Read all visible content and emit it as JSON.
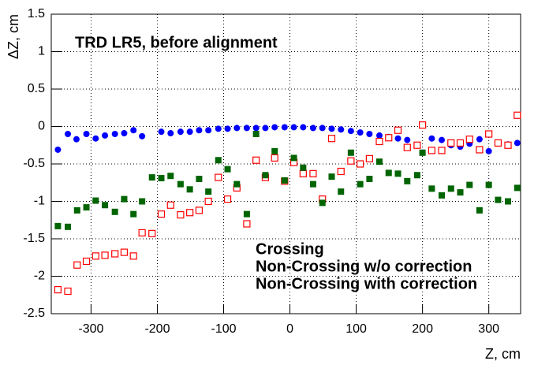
{
  "chart_data": {
    "type": "scatter",
    "title": "TRD LR5, before alignment",
    "x_label": "Z, cm",
    "y_label": "ΔZ, cm",
    "xlim": [
      -360,
      348
    ],
    "ylim": [
      -2.5,
      1.5
    ],
    "xticks": [
      -300,
      -200,
      -100,
      0,
      100,
      200,
      300
    ],
    "yticks": [
      -2.5,
      -2,
      -1.5,
      -1,
      -0.5,
      0,
      0.5,
      1,
      1.5
    ],
    "grid": true,
    "series": [
      {
        "name": "Crossing",
        "color": "#0000ff",
        "marker": "circle",
        "x": [
          -350,
          -335,
          -322,
          -307,
          -293,
          -279,
          -264,
          -250,
          -236,
          -223,
          -194,
          -180,
          -165,
          -151,
          -137,
          -123,
          -108,
          -94,
          -80,
          -65,
          -51,
          -37,
          -23,
          -8,
          6,
          20,
          35,
          49,
          63,
          77,
          92,
          106,
          120,
          135,
          149,
          163,
          177,
          200,
          214,
          229,
          243,
          257,
          271,
          286,
          300,
          314,
          329,
          343
        ],
        "values": [
          -0.31,
          -0.1,
          -0.17,
          -0.1,
          -0.16,
          -0.12,
          -0.1,
          -0.09,
          -0.05,
          -0.13,
          -0.07,
          -0.09,
          -0.07,
          -0.07,
          -0.05,
          -0.05,
          -0.03,
          -0.03,
          -0.02,
          -0.02,
          -0.02,
          -0.02,
          -0.01,
          -0.01,
          -0.01,
          -0.01,
          -0.02,
          -0.02,
          -0.03,
          -0.04,
          -0.06,
          -0.08,
          -0.1,
          -0.12,
          -0.14,
          -0.16,
          -0.18,
          -0.35,
          -0.16,
          -0.18,
          -0.25,
          -0.27,
          -0.23,
          -0.17,
          -0.33,
          -0.22,
          -0.24,
          -0.22
        ]
      },
      {
        "name": "Non-Crossing w/o correction",
        "color": "#ff0000",
        "marker": "open-square",
        "x": [
          -350,
          -335,
          -321,
          -307,
          -293,
          -279,
          -264,
          -250,
          -236,
          -223,
          -208,
          -194,
          -180,
          -165,
          -151,
          -137,
          -123,
          -108,
          -94,
          -80,
          -65,
          -51,
          -37,
          -23,
          -8,
          6,
          20,
          35,
          49,
          63,
          77,
          92,
          106,
          120,
          135,
          149,
          163,
          177,
          192,
          200,
          214,
          229,
          243,
          257,
          271,
          286,
          300,
          314,
          329,
          343
        ],
        "values": [
          -2.18,
          -2.2,
          -1.85,
          -1.8,
          -1.73,
          -1.72,
          -1.7,
          -1.68,
          -1.73,
          -1.42,
          -1.43,
          -1.17,
          -1.05,
          -1.18,
          -1.15,
          -1.12,
          -1.0,
          -0.68,
          -0.97,
          -0.82,
          -1.3,
          -0.45,
          -0.68,
          -0.42,
          -0.73,
          -0.48,
          -0.63,
          -0.63,
          -0.97,
          -0.16,
          -0.6,
          -0.46,
          -0.5,
          -0.43,
          -0.2,
          -0.15,
          -0.05,
          -0.28,
          -0.25,
          0.02,
          -0.32,
          -0.32,
          -0.22,
          -0.22,
          -0.17,
          -0.31,
          -0.1,
          -0.22,
          -0.25,
          0.15
        ]
      },
      {
        "name": "Non-Crossing with correction",
        "color": "#006400",
        "marker": "square",
        "x": [
          -350,
          -335,
          -321,
          -307,
          -293,
          -279,
          -264,
          -250,
          -236,
          -223,
          -208,
          -194,
          -180,
          -165,
          -151,
          -137,
          -123,
          -108,
          -94,
          -80,
          -65,
          -51,
          -37,
          -23,
          -8,
          6,
          20,
          35,
          49,
          63,
          77,
          92,
          106,
          120,
          135,
          149,
          163,
          177,
          192,
          200,
          214,
          229,
          243,
          257,
          271,
          286,
          300,
          314,
          329,
          343
        ],
        "values": [
          -1.33,
          -1.34,
          -1.12,
          -1.08,
          -0.99,
          -1.05,
          -1.14,
          -0.97,
          -1.17,
          -1.0,
          -0.68,
          -0.69,
          -0.66,
          -0.77,
          -0.84,
          -0.7,
          -0.87,
          -0.45,
          -0.57,
          -0.77,
          -1.17,
          -0.1,
          -0.65,
          -0.33,
          -0.72,
          -0.42,
          -0.55,
          -0.77,
          -1.02,
          -0.67,
          -0.87,
          -0.35,
          -0.77,
          -0.7,
          -0.47,
          -0.62,
          -0.63,
          -0.73,
          -0.65,
          -0.35,
          -0.83,
          -0.92,
          -0.83,
          -0.88,
          -0.78,
          -1.12,
          -0.78,
          -0.98,
          -1.0,
          -0.82
        ]
      }
    ]
  }
}
